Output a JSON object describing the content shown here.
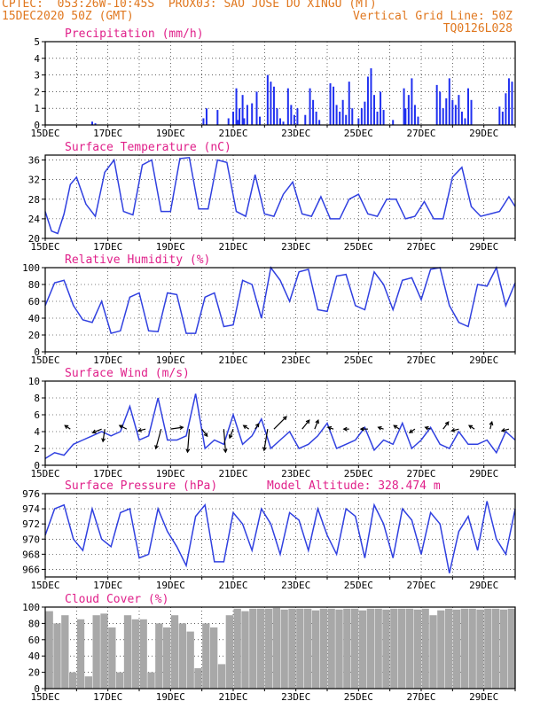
{
  "header": {
    "line1_left": "CPTEC:  053:26W-10:45S  PROX03: SAO JOSE DO XINGU (MT)",
    "line2_left": "15DEC2020 50Z (GMT)",
    "line2_right": "Vertical Grid Line: 50Z",
    "line3_right": "TQ0126L028"
  },
  "colors": {
    "header": "#e07820",
    "title": "#e0208a",
    "series": "#3040e0",
    "bars": "#2030f0",
    "cloud": "#a8a8a8",
    "wind_arrow": "#000000"
  },
  "x_axis": {
    "ticks": [
      "15DEC",
      "17DEC",
      "19DEC",
      "21DEC",
      "23DEC",
      "25DEC",
      "27DEC",
      "29DEC"
    ],
    "start_day": 15,
    "end_day": 30
  },
  "chart_data": [
    {
      "type": "bar",
      "title": "Precipitation (mm/h)",
      "ylim": [
        0,
        5
      ],
      "yticks": [
        0,
        1,
        2,
        3,
        4,
        5
      ],
      "x": [
        16.5,
        16.6,
        20.05,
        20.15,
        20.5,
        20.85,
        21.0,
        21.1,
        21.15,
        21.2,
        21.3,
        21.35,
        21.45,
        21.6,
        21.75,
        21.85,
        22.1,
        22.2,
        22.3,
        22.4,
        22.5,
        22.6,
        22.75,
        22.85,
        22.95,
        23.05,
        23.3,
        23.45,
        23.55,
        23.65,
        23.75,
        24.1,
        24.2,
        24.3,
        24.4,
        24.5,
        24.6,
        24.7,
        24.8,
        25.0,
        25.1,
        25.2,
        25.3,
        25.4,
        25.5,
        25.6,
        25.7,
        25.8,
        26.1,
        26.45,
        26.5,
        26.6,
        26.7,
        26.8,
        26.9,
        27.5,
        27.6,
        27.7,
        27.8,
        27.9,
        28.0,
        28.1,
        28.2,
        28.3,
        28.4,
        28.5,
        28.6,
        29.5,
        29.6,
        29.7,
        29.8,
        29.9
      ],
      "values": [
        0.2,
        0.1,
        0.4,
        1.0,
        0.9,
        0.4,
        0.8,
        2.2,
        0.3,
        1.0,
        1.8,
        0.4,
        1.2,
        1.3,
        2.0,
        0.5,
        3.0,
        2.6,
        2.3,
        1.0,
        0.4,
        0.2,
        2.2,
        1.2,
        0.6,
        1.0,
        0.6,
        2.2,
        1.5,
        0.8,
        0.3,
        2.5,
        2.3,
        1.2,
        0.8,
        1.5,
        0.6,
        2.6,
        1.0,
        0.4,
        1.0,
        1.4,
        2.9,
        3.4,
        1.8,
        0.8,
        2.0,
        0.9,
        0.3,
        2.2,
        1.0,
        1.8,
        2.8,
        1.2,
        0.5,
        2.4,
        2.0,
        1.0,
        1.6,
        2.8,
        1.5,
        1.2,
        1.8,
        0.8,
        0.4,
        2.2,
        1.5,
        1.1,
        0.8,
        1.9,
        2.8,
        2.6
      ]
    },
    {
      "type": "line",
      "title": "Surface Temperature (nC)",
      "ylim": [
        20,
        37
      ],
      "yticks": [
        20,
        24,
        28,
        32,
        36
      ],
      "x": [
        15.0,
        15.2,
        15.4,
        15.6,
        15.8,
        16.0,
        16.3,
        16.6,
        16.9,
        17.2,
        17.5,
        17.8,
        18.1,
        18.4,
        18.7,
        19.0,
        19.3,
        19.6,
        19.9,
        20.2,
        20.5,
        20.8,
        21.1,
        21.4,
        21.7,
        22.0,
        22.3,
        22.6,
        22.9,
        23.2,
        23.5,
        23.8,
        24.1,
        24.4,
        24.7,
        25.0,
        25.3,
        25.6,
        25.9,
        26.2,
        26.5,
        26.8,
        27.1,
        27.4,
        27.7,
        28.0,
        28.3,
        28.6,
        28.9,
        29.2,
        29.5,
        29.8,
        30.0
      ],
      "values": [
        25.5,
        21.5,
        21.0,
        25.0,
        31.0,
        32.5,
        27.0,
        24.5,
        33.5,
        36.0,
        25.5,
        24.8,
        35.0,
        36.0,
        25.5,
        25.5,
        36.3,
        36.5,
        26.0,
        26.0,
        36.0,
        35.5,
        25.5,
        24.5,
        33.0,
        25.0,
        24.5,
        29.0,
        31.5,
        25.0,
        24.5,
        28.5,
        24.0,
        24.0,
        28.0,
        29.0,
        25.0,
        24.5,
        28.0,
        28.0,
        24.0,
        24.5,
        27.5,
        24.0,
        24.0,
        32.5,
        34.5,
        26.5,
        24.5,
        25.0,
        25.5,
        28.5,
        26.5
      ]
    },
    {
      "type": "line",
      "title": "Relative Humidity (%)",
      "ylim": [
        0,
        100
      ],
      "yticks": [
        0,
        20,
        40,
        60,
        80,
        100
      ],
      "x": [
        15.0,
        15.3,
        15.6,
        15.9,
        16.2,
        16.5,
        16.8,
        17.1,
        17.4,
        17.7,
        18.0,
        18.3,
        18.6,
        18.9,
        19.2,
        19.5,
        19.8,
        20.1,
        20.4,
        20.7,
        21.0,
        21.3,
        21.6,
        21.9,
        22.2,
        22.5,
        22.8,
        23.1,
        23.4,
        23.7,
        24.0,
        24.3,
        24.6,
        24.9,
        25.2,
        25.5,
        25.8,
        26.1,
        26.4,
        26.7,
        27.0,
        27.3,
        27.6,
        27.9,
        28.2,
        28.5,
        28.8,
        29.1,
        29.4,
        29.7,
        30.0
      ],
      "values": [
        55.0,
        82.0,
        85.0,
        55.0,
        38.0,
        35.0,
        60.0,
        22.0,
        25.0,
        65.0,
        70.0,
        25.0,
        24.0,
        70.0,
        68.0,
        22.0,
        22.0,
        65.0,
        70.0,
        30.0,
        32.0,
        85.0,
        80.0,
        40.0,
        100.0,
        85.0,
        60.0,
        95.0,
        98.0,
        50.0,
        48.0,
        90.0,
        92.0,
        55.0,
        50.0,
        95.0,
        80.0,
        50.0,
        85.0,
        88.0,
        62.0,
        98.0,
        100.0,
        55.0,
        35.0,
        30.0,
        80.0,
        78.0,
        100.0,
        55.0,
        82.0
      ]
    },
    {
      "type": "line",
      "title": "Surface Wind (m/s)",
      "ylim": [
        0,
        10
      ],
      "yticks": [
        0,
        2,
        4,
        6,
        8,
        10
      ],
      "x": [
        15.0,
        15.3,
        15.6,
        15.9,
        16.2,
        16.5,
        16.8,
        17.1,
        17.4,
        17.7,
        18.0,
        18.3,
        18.6,
        18.9,
        19.2,
        19.5,
        19.8,
        20.1,
        20.4,
        20.7,
        21.0,
        21.3,
        21.6,
        21.9,
        22.2,
        22.5,
        22.8,
        23.1,
        23.4,
        23.7,
        24.0,
        24.3,
        24.6,
        24.9,
        25.2,
        25.5,
        25.8,
        26.1,
        26.4,
        26.7,
        27.0,
        27.3,
        27.6,
        27.9,
        28.2,
        28.5,
        28.8,
        29.1,
        29.4,
        29.7,
        30.0
      ],
      "values": [
        0.8,
        1.5,
        1.2,
        2.5,
        3.0,
        3.5,
        4.0,
        3.5,
        4.0,
        7.0,
        3.0,
        3.5,
        8.0,
        3.0,
        3.0,
        3.5,
        8.5,
        2.0,
        3.0,
        2.5,
        6.0,
        2.5,
        3.5,
        5.5,
        2.0,
        3.0,
        4.0,
        2.0,
        2.5,
        3.5,
        5.0,
        2.0,
        2.5,
        3.0,
        4.5,
        1.8,
        3.0,
        2.5,
        5.0,
        2.0,
        3.0,
        4.5,
        2.5,
        2.0,
        4.0,
        2.5,
        2.5,
        3.0,
        1.5,
        4.0,
        3.0
      ],
      "arrows": [
        {
          "x": 15.8,
          "dx": -6,
          "dy": -4
        },
        {
          "x": 16.8,
          "dx": -10,
          "dy": 4
        },
        {
          "x": 16.9,
          "dx": -2,
          "dy": 14
        },
        {
          "x": 17.6,
          "dx": -8,
          "dy": -4
        },
        {
          "x": 18.2,
          "dx": -8,
          "dy": 2
        },
        {
          "x": 18.7,
          "dx": -6,
          "dy": 22
        },
        {
          "x": 19.0,
          "dx": 14,
          "dy": -2
        },
        {
          "x": 19.6,
          "dx": -2,
          "dy": 26
        },
        {
          "x": 20.0,
          "dx": 6,
          "dy": 8
        },
        {
          "x": 20.7,
          "dx": 2,
          "dy": 26
        },
        {
          "x": 21.0,
          "dx": -4,
          "dy": 10
        },
        {
          "x": 21.5,
          "dx": -6,
          "dy": -4
        },
        {
          "x": 21.7,
          "dx": 4,
          "dy": -6
        },
        {
          "x": 22.1,
          "dx": -4,
          "dy": 24
        },
        {
          "x": 22.3,
          "dx": 14,
          "dy": -14
        },
        {
          "x": 23.2,
          "dx": 8,
          "dy": -10
        },
        {
          "x": 23.6,
          "dx": 4,
          "dy": -10
        },
        {
          "x": 24.2,
          "dx": -6,
          "dy": -2
        },
        {
          "x": 24.7,
          "dx": -6,
          "dy": 0
        },
        {
          "x": 25.3,
          "dx": -8,
          "dy": 0
        },
        {
          "x": 25.8,
          "dx": -6,
          "dy": -2
        },
        {
          "x": 26.3,
          "dx": -6,
          "dy": -4
        },
        {
          "x": 26.8,
          "dx": -6,
          "dy": 4
        },
        {
          "x": 27.3,
          "dx": -6,
          "dy": -2
        },
        {
          "x": 27.7,
          "dx": 6,
          "dy": -8
        },
        {
          "x": 28.2,
          "dx": -8,
          "dy": 2
        },
        {
          "x": 28.7,
          "dx": -6,
          "dy": -4
        },
        {
          "x": 29.2,
          "dx": 2,
          "dy": -8
        },
        {
          "x": 29.8,
          "dx": -8,
          "dy": 2
        }
      ]
    },
    {
      "type": "line",
      "title": "Surface Pressure (hPa)",
      "subtitle": "Model Altitude: 328.474 m",
      "ylim": [
        965,
        976
      ],
      "yticks": [
        966,
        968,
        970,
        972,
        974,
        976
      ],
      "x": [
        15.0,
        15.3,
        15.6,
        15.9,
        16.2,
        16.5,
        16.8,
        17.1,
        17.4,
        17.7,
        18.0,
        18.3,
        18.6,
        18.9,
        19.2,
        19.5,
        19.8,
        20.1,
        20.4,
        20.7,
        21.0,
        21.3,
        21.6,
        21.9,
        22.2,
        22.5,
        22.8,
        23.1,
        23.4,
        23.7,
        24.0,
        24.3,
        24.6,
        24.9,
        25.2,
        25.5,
        25.8,
        26.1,
        26.4,
        26.7,
        27.0,
        27.3,
        27.6,
        27.9,
        28.2,
        28.5,
        28.8,
        29.1,
        29.4,
        29.7,
        30.0
      ],
      "values": [
        970.5,
        974.0,
        974.5,
        970.0,
        968.5,
        974.0,
        970.0,
        969.0,
        973.5,
        974.0,
        967.5,
        968.0,
        974.0,
        971.0,
        969.0,
        966.5,
        973.0,
        974.5,
        967.0,
        967.0,
        973.5,
        972.0,
        968.5,
        974.0,
        972.0,
        968.0,
        973.5,
        972.5,
        968.5,
        974.0,
        970.5,
        968.0,
        974.0,
        973.0,
        967.5,
        974.5,
        972.0,
        967.5,
        974.0,
        972.5,
        968.0,
        973.5,
        972.0,
        965.5,
        971.0,
        973.0,
        968.5,
        975.0,
        970.0,
        968.0,
        974.0
      ]
    },
    {
      "type": "bar",
      "title": "Cloud Cover (%)",
      "ylim": [
        0,
        100
      ],
      "yticks": [
        0,
        20,
        40,
        60,
        80,
        100
      ],
      "x": [
        15.0,
        15.25,
        15.5,
        15.75,
        16.0,
        16.25,
        16.5,
        16.75,
        17.0,
        17.25,
        17.5,
        17.75,
        18.0,
        18.25,
        18.5,
        18.75,
        19.0,
        19.25,
        19.5,
        19.75,
        20.0,
        20.25,
        20.5,
        20.75,
        21.0,
        21.25,
        21.5,
        21.75,
        22.0,
        22.25,
        22.5,
        22.75,
        23.0,
        23.25,
        23.5,
        23.75,
        24.0,
        24.25,
        24.5,
        24.75,
        25.0,
        25.25,
        25.5,
        25.75,
        26.0,
        26.25,
        26.5,
        26.75,
        27.0,
        27.25,
        27.5,
        27.75,
        28.0,
        28.25,
        28.5,
        28.75,
        29.0,
        29.25,
        29.5,
        29.75
      ],
      "values": [
        95,
        80,
        90,
        20,
        85,
        15,
        90,
        92,
        75,
        20,
        90,
        85,
        85,
        20,
        80,
        75,
        90,
        80,
        70,
        25,
        80,
        75,
        30,
        90,
        98,
        95,
        98,
        98,
        98,
        99,
        97,
        98,
        98,
        98,
        96,
        98,
        98,
        97,
        98,
        98,
        96,
        98,
        98,
        97,
        98,
        98,
        98,
        97,
        98,
        90,
        96,
        98,
        97,
        98,
        98,
        97,
        98,
        98,
        97,
        98
      ]
    }
  ]
}
